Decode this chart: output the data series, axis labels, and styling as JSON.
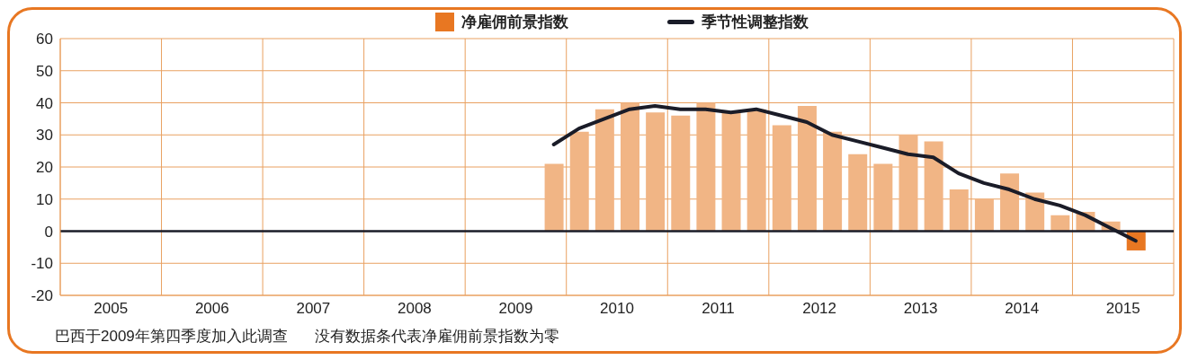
{
  "chart_data": {
    "type": "bar",
    "x": [
      2009.875,
      2010.125,
      2010.375,
      2010.625,
      2010.875,
      2011.125,
      2011.375,
      2011.625,
      2011.875,
      2012.125,
      2012.375,
      2012.625,
      2012.875,
      2013.125,
      2013.375,
      2013.625,
      2013.875,
      2014.125,
      2014.375,
      2014.625,
      2014.875,
      2015.125,
      2015.375,
      2015.625
    ],
    "series": [
      {
        "name": "净雇佣前景指数",
        "color": "#e87722",
        "colors": [
          "#f1b585",
          "#f1b585",
          "#f1b585",
          "#f1b585",
          "#f1b585",
          "#f1b585",
          "#f1b585",
          "#f1b585",
          "#f1b585",
          "#f1b585",
          "#f1b585",
          "#f1b585",
          "#f1b585",
          "#f1b585",
          "#f1b585",
          "#f1b585",
          "#f1b585",
          "#f1b585",
          "#f1b585",
          "#f1b585",
          "#f1b585",
          "#f1b585",
          "#f1b585",
          "#e87722"
        ],
        "values": [
          21,
          31,
          38,
          40,
          37,
          36,
          40,
          37,
          38,
          33,
          39,
          31,
          24,
          21,
          30,
          28,
          13,
          10,
          18,
          12,
          5,
          6,
          3,
          -6
        ]
      },
      {
        "name": "季节性调整指数",
        "type": "line",
        "color": "#1a1c28",
        "values": [
          27,
          32,
          35,
          38,
          39,
          38,
          38,
          37,
          38,
          36,
          34,
          30,
          28,
          26,
          24,
          23,
          18,
          15,
          13,
          10,
          8,
          5,
          1,
          -3
        ]
      }
    ],
    "xlim": [
      2005,
      2016
    ],
    "xticks": [
      {
        "value": 2005,
        "label": null
      },
      {
        "value": 2005.5,
        "label": "2005"
      },
      {
        "value": 2006,
        "label": null
      },
      {
        "value": 2006.5,
        "label": "2006"
      },
      {
        "value": 2007,
        "label": null
      },
      {
        "value": 2007.5,
        "label": "2007"
      },
      {
        "value": 2008,
        "label": null
      },
      {
        "value": 2008.5,
        "label": "2008"
      },
      {
        "value": 2009,
        "label": null
      },
      {
        "value": 2009.5,
        "label": "2009"
      },
      {
        "value": 2010,
        "label": null
      },
      {
        "value": 2010.5,
        "label": "2010"
      },
      {
        "value": 2011,
        "label": null
      },
      {
        "value": 2011.5,
        "label": "2011"
      },
      {
        "value": 2012,
        "label": null
      },
      {
        "value": 2012.5,
        "label": "2012"
      },
      {
        "value": 2013,
        "label": null
      },
      {
        "value": 2013.5,
        "label": "2013"
      },
      {
        "value": 2014,
        "label": null
      },
      {
        "value": 2014.5,
        "label": "2014"
      },
      {
        "value": 2015,
        "label": null
      },
      {
        "value": 2015.5,
        "label": "2015"
      },
      {
        "value": 2016,
        "label": null
      }
    ],
    "ylim": [
      -20,
      60
    ],
    "yticks": [
      -20,
      -10,
      0,
      10,
      20,
      30,
      40,
      50,
      60
    ],
    "ref_lines": [
      {
        "axis": "y",
        "value": 0,
        "color": "#1a1c28"
      }
    ],
    "grid": true,
    "legend": "top",
    "line_style": "solid",
    "marker": "none",
    "annotations": [
      "巴西于2009年第四季度加入此调查",
      "没有数据条代表净雇佣前景指数为零"
    ]
  }
}
